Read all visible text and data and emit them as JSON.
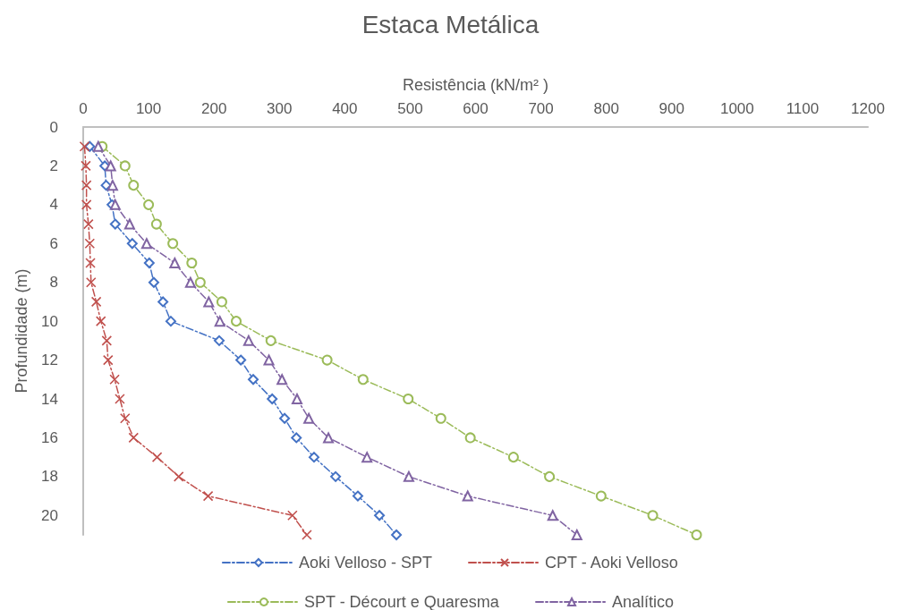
{
  "chart_data": {
    "type": "line",
    "title": "Estaca Metálica",
    "xlabel": "Resistência (kN/m² )",
    "ylabel": "Profundidade (m)",
    "xlim": [
      0,
      1200
    ],
    "xticks": [
      0,
      100,
      200,
      300,
      400,
      500,
      600,
      700,
      800,
      900,
      1000,
      1100,
      1200
    ],
    "ylim": [
      21,
      0
    ],
    "yticks": [
      0,
      2,
      4,
      6,
      8,
      10,
      12,
      14,
      16,
      18,
      20
    ],
    "grid": false,
    "legend": "bottom",
    "line_style": "dashed",
    "series": [
      {
        "name": "Aoki Velloso - SPT",
        "color": "#4472c4",
        "marker": "diamond",
        "x": [
          10,
          33,
          35,
          44,
          49,
          75,
          101,
          108,
          122,
          134,
          208,
          241,
          260,
          289,
          308,
          326,
          353,
          386,
          420,
          453,
          479
        ],
        "values": [
          1,
          2,
          3,
          4,
          5,
          6,
          7,
          8,
          9,
          10,
          11,
          12,
          13,
          14,
          15,
          16,
          17,
          18,
          19,
          20,
          21
        ]
      },
      {
        "name": "CPT - Aoki Velloso",
        "color": "#c0504d",
        "marker": "cross",
        "x": [
          2,
          4,
          5,
          5,
          8,
          10,
          11,
          12,
          20,
          27,
          36,
          38,
          48,
          56,
          64,
          77,
          113,
          146,
          191,
          320,
          342
        ],
        "values": [
          1,
          2,
          3,
          4,
          5,
          6,
          7,
          8,
          9,
          10,
          11,
          12,
          13,
          14,
          15,
          16,
          17,
          18,
          19,
          20,
          21
        ]
      },
      {
        "name": "SPT - Décourt e Quaresma",
        "color": "#9bbb59",
        "marker": "circle",
        "x": [
          29,
          64,
          77,
          100,
          112,
          137,
          166,
          179,
          212,
          234,
          287,
          373,
          428,
          497,
          547,
          592,
          658,
          713,
          792,
          871,
          938
        ],
        "values": [
          1,
          2,
          3,
          4,
          5,
          6,
          7,
          8,
          9,
          10,
          11,
          12,
          13,
          14,
          15,
          16,
          17,
          18,
          19,
          20,
          21
        ]
      },
      {
        "name": "Analítico",
        "color": "#8064a2",
        "marker": "triangle",
        "x": [
          23,
          42,
          45,
          49,
          71,
          97,
          140,
          164,
          192,
          209,
          253,
          284,
          304,
          327,
          345,
          375,
          434,
          498,
          588,
          718,
          755
        ],
        "values": [
          1,
          2,
          3,
          4,
          5,
          6,
          7,
          8,
          9,
          10,
          11,
          12,
          13,
          14,
          15,
          16,
          17,
          18,
          19,
          20,
          21
        ]
      }
    ]
  }
}
